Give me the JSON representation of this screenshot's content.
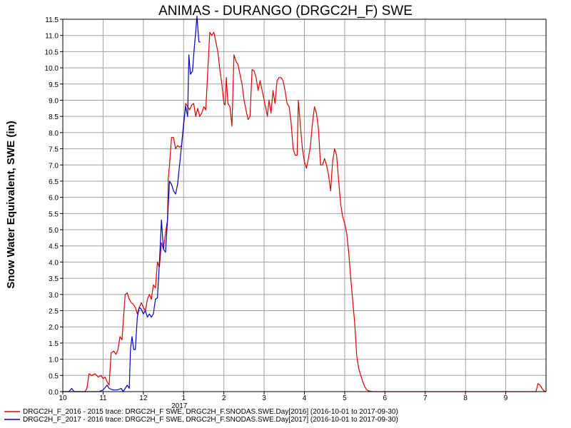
{
  "chart_data": {
    "type": "line",
    "title": "ANIMAS - DURANGO (DRGC2H_F) SWE",
    "xlabel": "",
    "ylabel": "Snow Water Equivalent, SWE (in)",
    "ylim": [
      0,
      11.5
    ],
    "y_ticks": [
      "0.0",
      "0.5",
      "1.0",
      "1.5",
      "2.0",
      "2.5",
      "3.0",
      "3.5",
      "4.0",
      "4.5",
      "5.0",
      "5.5",
      "6.0",
      "6.5",
      "7.0",
      "7.5",
      "8.0",
      "8.5",
      "9.0",
      "9.5",
      "10.0",
      "10.5",
      "11.0",
      "11.5"
    ],
    "x_ticks": [
      "10",
      "11",
      "12",
      "1",
      "2",
      "3",
      "4",
      "5",
      "6",
      "7",
      "8",
      "9"
    ],
    "x_year_label": "2017",
    "x_axis_note": "month index: 0 = Oct 1, 12 = Oct 1 of next year",
    "grid": true,
    "legend_position": "bottom",
    "series": [
      {
        "name": "DRGC2H_F_2016 - 2015 trace: DRGC2H_F SWE, DRGC2H_F.SNODAS.SWE.Day[2016] (2016-10-01 to 2017-09-30)",
        "color": "#e00000",
        "points": [
          [
            0,
            0
          ],
          [
            0.3,
            0
          ],
          [
            0.55,
            0
          ],
          [
            0.6,
            0.1
          ],
          [
            0.65,
            0.55
          ],
          [
            0.72,
            0.5
          ],
          [
            0.8,
            0.55
          ],
          [
            0.88,
            0.45
          ],
          [
            0.95,
            0.5
          ],
          [
            1.0,
            0.4
          ],
          [
            1.05,
            0.45
          ],
          [
            1.1,
            0.3
          ],
          [
            1.15,
            0.2
          ],
          [
            1.2,
            1.2
          ],
          [
            1.27,
            1.25
          ],
          [
            1.32,
            1.15
          ],
          [
            1.37,
            1.3
          ],
          [
            1.42,
            1.7
          ],
          [
            1.47,
            1.6
          ],
          [
            1.52,
            2.5
          ],
          [
            1.55,
            3.0
          ],
          [
            1.6,
            3.05
          ],
          [
            1.65,
            2.85
          ],
          [
            1.7,
            2.75
          ],
          [
            1.75,
            2.7
          ],
          [
            1.8,
            2.6
          ],
          [
            1.85,
            2.4
          ],
          [
            1.9,
            2.6
          ],
          [
            1.95,
            2.75
          ],
          [
            2.0,
            2.6
          ],
          [
            2.05,
            2.5
          ],
          [
            2.1,
            2.85
          ],
          [
            2.15,
            3.0
          ],
          [
            2.2,
            2.85
          ],
          [
            2.25,
            3.3
          ],
          [
            2.3,
            3.2
          ],
          [
            2.35,
            4.0
          ],
          [
            2.4,
            3.85
          ],
          [
            2.45,
            4.6
          ],
          [
            2.5,
            4.4
          ],
          [
            2.55,
            4.9
          ],
          [
            2.6,
            5.3
          ],
          [
            2.62,
            6.6
          ],
          [
            2.65,
            7.0
          ],
          [
            2.7,
            7.85
          ],
          [
            2.75,
            7.85
          ],
          [
            2.8,
            7.5
          ],
          [
            2.85,
            7.6
          ],
          [
            2.9,
            7.55
          ],
          [
            2.95,
            7.6
          ],
          [
            3.0,
            8.2
          ],
          [
            3.05,
            8.9
          ],
          [
            3.1,
            8.8
          ],
          [
            3.15,
            8.7
          ],
          [
            3.2,
            8.85
          ],
          [
            3.25,
            8.9
          ],
          [
            3.3,
            8.5
          ],
          [
            3.35,
            8.75
          ],
          [
            3.4,
            8.5
          ],
          [
            3.45,
            8.6
          ],
          [
            3.5,
            8.8
          ],
          [
            3.55,
            8.7
          ],
          [
            3.6,
            9.9
          ],
          [
            3.65,
            11.1
          ],
          [
            3.7,
            11.0
          ],
          [
            3.75,
            11.1
          ],
          [
            3.8,
            10.8
          ],
          [
            3.85,
            10.5
          ],
          [
            3.9,
            9.95
          ],
          [
            3.95,
            9.5
          ],
          [
            4.0,
            8.9
          ],
          [
            4.03,
            8.85
          ],
          [
            4.06,
            9.7
          ],
          [
            4.1,
            8.9
          ],
          [
            4.15,
            8.8
          ],
          [
            4.2,
            8.2
          ],
          [
            4.25,
            10.4
          ],
          [
            4.3,
            10.2
          ],
          [
            4.35,
            10.1
          ],
          [
            4.4,
            9.8
          ],
          [
            4.45,
            9.5
          ],
          [
            4.5,
            9.0
          ],
          [
            4.55,
            8.7
          ],
          [
            4.6,
            8.4
          ],
          [
            4.65,
            8.5
          ],
          [
            4.7,
            9.95
          ],
          [
            4.75,
            9.9
          ],
          [
            4.8,
            9.7
          ],
          [
            4.85,
            9.3
          ],
          [
            4.9,
            9.6
          ],
          [
            4.95,
            9.3
          ],
          [
            5.0,
            9.0
          ],
          [
            5.05,
            8.7
          ],
          [
            5.08,
            8.5
          ],
          [
            5.12,
            9.0
          ],
          [
            5.17,
            8.6
          ],
          [
            5.22,
            9.3
          ],
          [
            5.27,
            8.9
          ],
          [
            5.32,
            9.6
          ],
          [
            5.37,
            9.7
          ],
          [
            5.42,
            9.7
          ],
          [
            5.47,
            9.6
          ],
          [
            5.52,
            9.3
          ],
          [
            5.57,
            8.9
          ],
          [
            5.62,
            8.8
          ],
          [
            5.67,
            8.3
          ],
          [
            5.72,
            7.5
          ],
          [
            5.77,
            7.3
          ],
          [
            5.82,
            7.3
          ],
          [
            5.85,
            9.0
          ],
          [
            5.9,
            8.2
          ],
          [
            5.95,
            7.5
          ],
          [
            6.0,
            7.1
          ],
          [
            6.05,
            6.9
          ],
          [
            6.1,
            7.2
          ],
          [
            6.15,
            7.6
          ],
          [
            6.2,
            8.3
          ],
          [
            6.25,
            8.8
          ],
          [
            6.3,
            8.6
          ],
          [
            6.35,
            8.1
          ],
          [
            6.4,
            7.0
          ],
          [
            6.45,
            7.0
          ],
          [
            6.5,
            7.2
          ],
          [
            6.55,
            7.0
          ],
          [
            6.6,
            6.7
          ],
          [
            6.65,
            6.2
          ],
          [
            6.7,
            7.1
          ],
          [
            6.75,
            7.5
          ],
          [
            6.8,
            7.3
          ],
          [
            6.85,
            6.5
          ],
          [
            6.9,
            5.8
          ],
          [
            6.95,
            5.4
          ],
          [
            7.0,
            5.2
          ],
          [
            7.05,
            4.9
          ],
          [
            7.1,
            4.3
          ],
          [
            7.15,
            3.5
          ],
          [
            7.2,
            2.8
          ],
          [
            7.25,
            2.1
          ],
          [
            7.3,
            1.1
          ],
          [
            7.35,
            0.7
          ],
          [
            7.4,
            0.5
          ],
          [
            7.45,
            0.3
          ],
          [
            7.5,
            0.15
          ],
          [
            7.55,
            0.05
          ],
          [
            7.6,
            0.02
          ],
          [
            7.7,
            0
          ],
          [
            11.75,
            0
          ],
          [
            11.8,
            0.25
          ],
          [
            11.85,
            0.2
          ],
          [
            11.9,
            0.1
          ],
          [
            11.95,
            0.02
          ],
          [
            12.0,
            0
          ]
        ]
      },
      {
        "name": "DRGC2H_F_2017 - 2016 trace: DRGC2H_F SWE, DRGC2H_F.SNODAS.SWE.Day[2017] (2016-10-01 to 2017-09-30)",
        "color": "#0000cc",
        "points": [
          [
            0,
            0
          ],
          [
            0.15,
            0
          ],
          [
            0.22,
            0.1
          ],
          [
            0.28,
            0
          ],
          [
            0.4,
            0
          ],
          [
            0.5,
            0
          ],
          [
            0.65,
            0
          ],
          [
            0.75,
            0
          ],
          [
            0.9,
            0
          ],
          [
            1.0,
            0.05
          ],
          [
            1.1,
            0.2
          ],
          [
            1.15,
            0.1
          ],
          [
            1.25,
            0.05
          ],
          [
            1.35,
            0.05
          ],
          [
            1.45,
            0.1
          ],
          [
            1.5,
            0
          ],
          [
            1.55,
            0.1
          ],
          [
            1.6,
            0.2
          ],
          [
            1.65,
            0.1
          ],
          [
            1.68,
            1.3
          ],
          [
            1.72,
            1.7
          ],
          [
            1.76,
            1.3
          ],
          [
            1.8,
            1.3
          ],
          [
            1.85,
            2.3
          ],
          [
            1.9,
            2.6
          ],
          [
            1.95,
            2.55
          ],
          [
            2.0,
            2.4
          ],
          [
            2.05,
            2.5
          ],
          [
            2.1,
            2.3
          ],
          [
            2.15,
            2.4
          ],
          [
            2.2,
            2.3
          ],
          [
            2.25,
            2.4
          ],
          [
            2.3,
            2.85
          ],
          [
            2.35,
            2.9
          ],
          [
            2.4,
            4.0
          ],
          [
            2.45,
            5.3
          ],
          [
            2.5,
            4.4
          ],
          [
            2.55,
            4.3
          ],
          [
            2.6,
            5.3
          ],
          [
            2.65,
            6.5
          ],
          [
            2.7,
            6.4
          ],
          [
            2.75,
            6.2
          ],
          [
            2.8,
            6.1
          ],
          [
            2.85,
            6.4
          ],
          [
            2.9,
            7.0
          ],
          [
            2.95,
            7.6
          ],
          [
            3.0,
            8.3
          ],
          [
            3.05,
            8.8
          ],
          [
            3.1,
            8.5
          ],
          [
            3.13,
            10.4
          ],
          [
            3.17,
            9.8
          ],
          [
            3.22,
            9.9
          ],
          [
            3.27,
            10.7
          ],
          [
            3.3,
            11.1
          ],
          [
            3.33,
            11.6
          ],
          [
            3.38,
            10.8
          ],
          [
            3.42,
            10.8
          ]
        ]
      }
    ]
  }
}
